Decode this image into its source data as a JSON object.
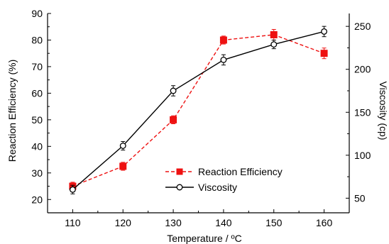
{
  "chart_data": {
    "type": "line",
    "title": "",
    "xlabel": "Temperature / ºC",
    "ylabel_left": "Reaction Efficiency (%)",
    "ylabel_right": "Viscosity (cp)",
    "x": [
      110,
      120,
      130,
      140,
      150,
      160
    ],
    "xlim": [
      105,
      165
    ],
    "x_ticks": [
      110,
      120,
      130,
      140,
      150,
      160
    ],
    "ylim_left": [
      15,
      90
    ],
    "y_ticks_left": [
      20,
      30,
      40,
      50,
      60,
      70,
      80,
      90
    ],
    "ylim_right": [
      33,
      265
    ],
    "y_ticks_right": [
      50,
      100,
      150,
      200,
      250
    ],
    "grid": false,
    "legend_position": "lower-center",
    "series": [
      {
        "name": "Reaction Efficiency",
        "axis": "left",
        "color": "#ee1111",
        "style": "dashed",
        "marker": "filled-square",
        "values": [
          25,
          32.5,
          50,
          80,
          82,
          75
        ],
        "errors": [
          1.5,
          1.5,
          1.5,
          1.5,
          2,
          2
        ]
      },
      {
        "name": "Viscosity",
        "axis": "right",
        "color": "#000000",
        "style": "solid",
        "marker": "open-circle",
        "values": [
          60,
          111,
          175,
          211,
          229,
          244
        ],
        "errors": [
          5,
          5,
          6,
          6,
          5,
          6
        ]
      }
    ]
  }
}
